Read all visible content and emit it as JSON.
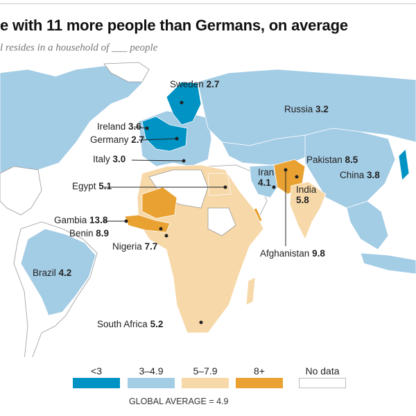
{
  "title": "e with 11 more people than Germans, on average",
  "subtitle": "l resides in a household of ___ people",
  "colors": {
    "lt3": "#0093c4",
    "3to4.9": "#a3cce5",
    "5to7.9": "#f7d8a8",
    "8plus": "#e9a132",
    "nodata": "#ffffff"
  },
  "labels": [
    {
      "country": "Sweden",
      "value": "2.7"
    },
    {
      "country": "Russia",
      "value": "3.2"
    },
    {
      "country": "Ireland",
      "value": "3.6"
    },
    {
      "country": "Germany",
      "value": "2.7"
    },
    {
      "country": "Italy",
      "value": "3.0"
    },
    {
      "country": "Pakistan",
      "value": "8.5"
    },
    {
      "country": "Iran",
      "value": "4.1"
    },
    {
      "country": "China",
      "value": "3.8"
    },
    {
      "country": "Egypt",
      "value": "5.1"
    },
    {
      "country": "India",
      "value": "5.8"
    },
    {
      "country": "Gambia",
      "value": "13.8"
    },
    {
      "country": "Benin",
      "value": "8.9"
    },
    {
      "country": "Nigeria",
      "value": "7.7"
    },
    {
      "country": "Afghanistan",
      "value": "9.8"
    },
    {
      "country": "Brazil",
      "value": "4.2"
    },
    {
      "country": "South Africa",
      "value": "5.2"
    }
  ],
  "legend": [
    {
      "label": "<3",
      "color": "#0093c4"
    },
    {
      "label": "3–4.9",
      "color": "#a3cce5"
    },
    {
      "label": "5–7.9",
      "color": "#f7d8a8"
    },
    {
      "label": "8+",
      "color": "#e9a132"
    },
    {
      "label": "No data",
      "color": "#ffffff"
    }
  ],
  "global_average": "GLOBAL AVERAGE = 4.9"
}
